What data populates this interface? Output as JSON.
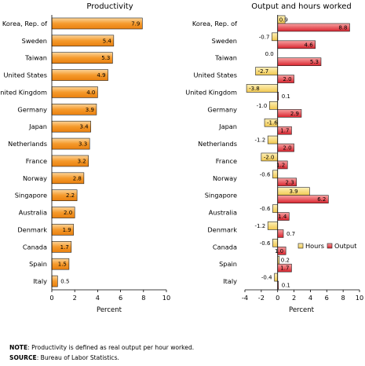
{
  "chart_data": [
    {
      "type": "bar",
      "orientation": "horizontal",
      "title": "Productivity",
      "xlabel": "Percent",
      "xlim": [
        0,
        10
      ],
      "xticks": [
        0,
        2,
        4,
        6,
        8,
        10
      ],
      "categories": [
        "Korea, Rep. of",
        "Sweden",
        "Taiwan",
        "United States",
        "United Kingdom",
        "Germany",
        "Japan",
        "Netherlands",
        "France",
        "Norway",
        "Singapore",
        "Australia",
        "Denmark",
        "Canada",
        "Spain",
        "Italy"
      ],
      "values": [
        7.9,
        5.4,
        5.3,
        4.9,
        4.0,
        3.9,
        3.4,
        3.3,
        3.2,
        2.8,
        2.2,
        2.0,
        1.9,
        1.7,
        1.5,
        0.5
      ],
      "labels": [
        "7.9",
        "5.4",
        "5.3",
        "4.9",
        "4.0",
        "3.9",
        "3.4",
        "3.3",
        "3.2",
        "2.8",
        "2.2",
        "2.0",
        "1.9",
        "1.7",
        "1.5",
        "0.5"
      ]
    },
    {
      "type": "bar",
      "orientation": "horizontal",
      "title": "Output and hours worked",
      "xlabel": "Percent",
      "xlim": [
        -4,
        10
      ],
      "xticks": [
        -4,
        -2,
        0,
        2,
        4,
        6,
        8,
        10
      ],
      "categories": [
        "Korea, Rep. of",
        "Sweden",
        "Taiwan",
        "United States",
        "United Kingdom",
        "Germany",
        "Japan",
        "Netherlands",
        "France",
        "Norway",
        "Singapore",
        "Australia",
        "Denmark",
        "Canada",
        "Spain",
        "Italy"
      ],
      "legend_position": "bottom-right",
      "series": [
        {
          "name": "Hours",
          "color": "#f5d36a",
          "values": [
            0.9,
            -0.7,
            0.0,
            -2.7,
            -3.8,
            -1.0,
            -1.6,
            -1.2,
            -2.0,
            -0.6,
            3.9,
            -0.6,
            -1.2,
            -0.6,
            0.2,
            -0.4
          ],
          "labels": [
            "0.9",
            "-0.7",
            "0.0",
            "-2.7",
            "-3.8",
            "-1.0",
            "-1.6",
            "-1.2",
            "-2.0",
            "-0.6",
            "3.9",
            "-0.6",
            "-1.2",
            "-0.6",
            "0.2",
            "-0.4"
          ]
        },
        {
          "name": "Output",
          "color": "#e2313a",
          "values": [
            8.8,
            4.6,
            5.3,
            2.0,
            0.1,
            2.9,
            1.7,
            2.0,
            1.2,
            2.3,
            6.2,
            1.4,
            0.7,
            1.0,
            1.7,
            0.1
          ],
          "labels": [
            "8.8",
            "4.6",
            "5.3",
            "2.0",
            "0.1",
            "2.9",
            "1.7",
            "2.0",
            "1.2",
            "2.3",
            "6.2",
            "1.4",
            "0.7",
            "1.0",
            "1.7",
            "0.1"
          ]
        }
      ]
    }
  ],
  "notes": {
    "note_label": "NOTE",
    "note_text": ": Productivity is defined as real output per hour worked.",
    "source_label": "SOURCE",
    "source_text": ": Bureau of Labor Statistics."
  }
}
